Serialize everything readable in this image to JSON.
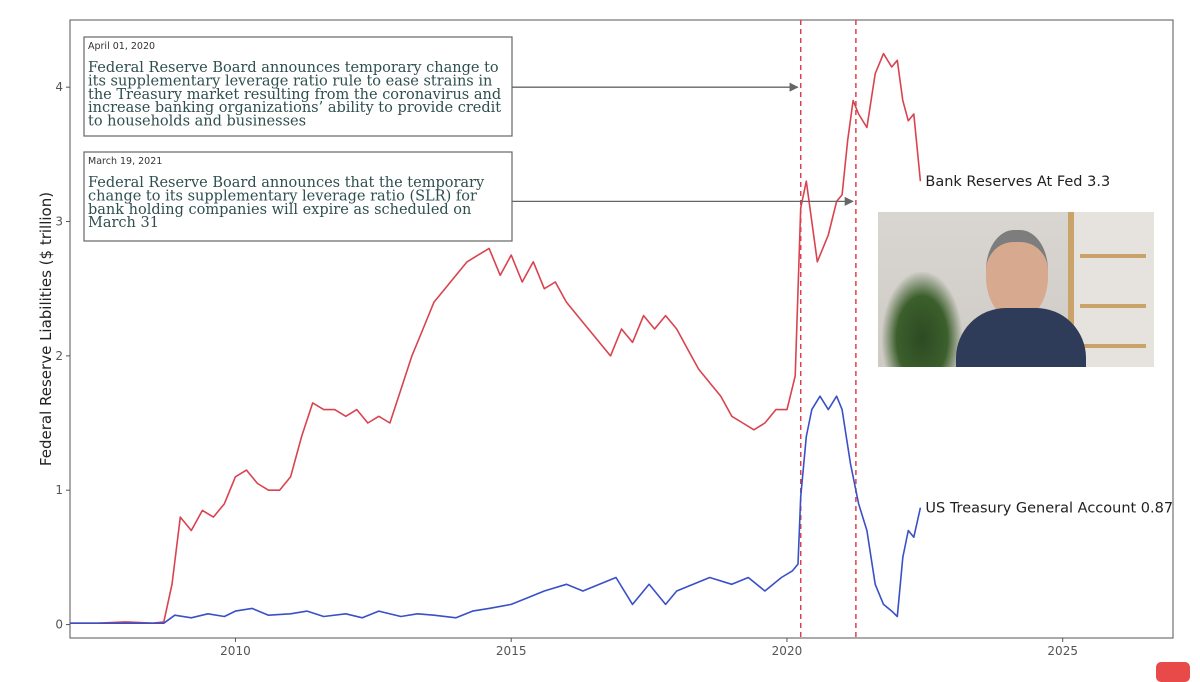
{
  "chart_data": {
    "type": "line",
    "title": "",
    "xlabel": "",
    "ylabel": "Federal Reserve Liabilities ($ trillion)",
    "xlim": [
      2007,
      2027
    ],
    "ylim": [
      -0.1,
      4.5
    ],
    "x_ticks": [
      2010,
      2015,
      2020,
      2025
    ],
    "y_ticks": [
      0,
      1,
      2,
      3,
      4
    ],
    "grid": false,
    "series": [
      {
        "name": "Bank Reserves At Fed",
        "color": "#d9434f",
        "end_label": "Bank Reserves At Fed 3.3",
        "x": [
          2007.0,
          2007.5,
          2008.0,
          2008.5,
          2008.7,
          2008.85,
          2009.0,
          2009.2,
          2009.4,
          2009.6,
          2009.8,
          2010.0,
          2010.2,
          2010.4,
          2010.6,
          2010.8,
          2011.0,
          2011.2,
          2011.4,
          2011.6,
          2011.8,
          2012.0,
          2012.2,
          2012.4,
          2012.6,
          2012.8,
          2013.0,
          2013.2,
          2013.4,
          2013.6,
          2013.8,
          2014.0,
          2014.2,
          2014.4,
          2014.6,
          2014.8,
          2015.0,
          2015.2,
          2015.4,
          2015.6,
          2015.8,
          2016.0,
          2016.2,
          2016.4,
          2016.6,
          2016.8,
          2017.0,
          2017.2,
          2017.4,
          2017.6,
          2017.8,
          2018.0,
          2018.2,
          2018.4,
          2018.6,
          2018.8,
          2019.0,
          2019.2,
          2019.4,
          2019.6,
          2019.8,
          2020.0,
          2020.15,
          2020.25,
          2020.35,
          2020.45,
          2020.55,
          2020.65,
          2020.75,
          2020.9,
          2021.0,
          2021.1,
          2021.2,
          2021.3,
          2021.45,
          2021.6,
          2021.75,
          2021.9,
          2022.0,
          2022.1,
          2022.2,
          2022.3,
          2022.42
        ],
        "values": [
          0.01,
          0.01,
          0.02,
          0.01,
          0.02,
          0.3,
          0.8,
          0.7,
          0.85,
          0.8,
          0.9,
          1.1,
          1.15,
          1.05,
          1.0,
          1.0,
          1.1,
          1.4,
          1.65,
          1.6,
          1.6,
          1.55,
          1.6,
          1.5,
          1.55,
          1.5,
          1.75,
          2.0,
          2.2,
          2.4,
          2.5,
          2.6,
          2.7,
          2.75,
          2.8,
          2.6,
          2.75,
          2.55,
          2.7,
          2.5,
          2.55,
          2.4,
          2.3,
          2.2,
          2.1,
          2.0,
          2.2,
          2.1,
          2.3,
          2.2,
          2.3,
          2.2,
          2.05,
          1.9,
          1.8,
          1.7,
          1.55,
          1.5,
          1.45,
          1.5,
          1.6,
          1.6,
          1.85,
          3.1,
          3.3,
          3.0,
          2.7,
          2.8,
          2.9,
          3.15,
          3.2,
          3.6,
          3.9,
          3.8,
          3.7,
          4.1,
          4.25,
          4.15,
          4.2,
          3.9,
          3.75,
          3.8,
          3.3
        ]
      },
      {
        "name": "US Treasury General Account",
        "color": "#3950c7",
        "end_label": "US Treasury General Account 0.87",
        "x": [
          2007.0,
          2008.0,
          2008.7,
          2008.9,
          2009.2,
          2009.5,
          2009.8,
          2010.0,
          2010.3,
          2010.6,
          2011.0,
          2011.3,
          2011.6,
          2012.0,
          2012.3,
          2012.6,
          2013.0,
          2013.3,
          2013.6,
          2014.0,
          2014.3,
          2014.6,
          2015.0,
          2015.3,
          2015.6,
          2016.0,
          2016.3,
          2016.6,
          2016.9,
          2017.2,
          2017.5,
          2017.8,
          2018.0,
          2018.3,
          2018.6,
          2019.0,
          2019.3,
          2019.6,
          2019.9,
          2020.1,
          2020.2,
          2020.25,
          2020.35,
          2020.45,
          2020.6,
          2020.75,
          2020.9,
          2021.0,
          2021.15,
          2021.3,
          2021.45,
          2021.6,
          2021.75,
          2021.9,
          2022.0,
          2022.1,
          2022.2,
          2022.3,
          2022.42
        ],
        "values": [
          0.01,
          0.01,
          0.01,
          0.07,
          0.05,
          0.08,
          0.06,
          0.1,
          0.12,
          0.07,
          0.08,
          0.1,
          0.06,
          0.08,
          0.05,
          0.1,
          0.06,
          0.08,
          0.07,
          0.05,
          0.1,
          0.12,
          0.15,
          0.2,
          0.25,
          0.3,
          0.25,
          0.3,
          0.35,
          0.15,
          0.3,
          0.15,
          0.25,
          0.3,
          0.35,
          0.3,
          0.35,
          0.25,
          0.35,
          0.4,
          0.45,
          0.95,
          1.4,
          1.6,
          1.7,
          1.6,
          1.7,
          1.6,
          1.2,
          0.9,
          0.7,
          0.3,
          0.15,
          0.1,
          0.06,
          0.5,
          0.7,
          0.65,
          0.87
        ]
      }
    ],
    "annotations": [
      {
        "date_label": "April 01, 2020",
        "lines": [
          "Federal Reserve Board announces temporary change to",
          "its supplementary leverage ratio rule to ease strains in",
          "the Treasury market resulting from the coronavirus and",
          "increase banking organizations’ ability to provide credit",
          "to households and businesses"
        ],
        "event_x": 2020.25,
        "arrow_y": 4.0
      },
      {
        "date_label": "March 19, 2021",
        "lines": [
          "Federal Reserve Board announces that the temporary",
          "change to its supplementary leverage ratio (SLR) for",
          "bank holding companies will expire as scheduled on",
          "March 31"
        ],
        "event_x": 2021.25,
        "arrow_y": 3.15
      }
    ],
    "vlines": [
      2020.25,
      2021.25
    ]
  }
}
